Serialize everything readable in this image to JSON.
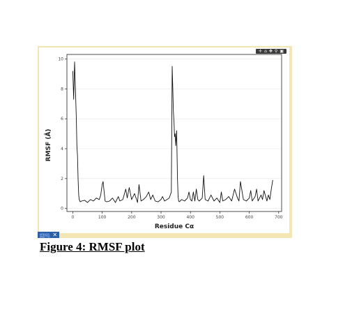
{
  "caption": "Figure 4: RMSF plot",
  "toolbar": {
    "icons": [
      "move-arrows-icon",
      "home-icon",
      "pan-icon",
      "zoom-icon",
      "save-icon"
    ]
  },
  "tag": {
    "label": "elegs",
    "close": "✕"
  },
  "colors": {
    "frame": "#f3e6b4",
    "line": "#111111",
    "grid": "#e6e6e6",
    "tag_bg": "#2b5fa8",
    "toolbar_bg": "#3a3a3a"
  },
  "chart_data": {
    "type": "line",
    "title": "",
    "xlabel": "Residue Cα",
    "ylabel": "RMSF (Å)",
    "xlim": [
      -20,
      710
    ],
    "ylim": [
      -0.2,
      10.3
    ],
    "xticks": [
      0,
      100,
      200,
      300,
      400,
      500,
      600,
      700
    ],
    "yticks": [
      0,
      2,
      4,
      6,
      8,
      10
    ],
    "grid": true,
    "series": [
      {
        "x": [
          0,
          3,
          6,
          9,
          12,
          14,
          16,
          18,
          20,
          22,
          25,
          30,
          40,
          50,
          60,
          70,
          80,
          90,
          95,
          100,
          103,
          106,
          110,
          115,
          125,
          135,
          145,
          155,
          160,
          170,
          180,
          185,
          192,
          200,
          210,
          220,
          225,
          232,
          240,
          250,
          258,
          265,
          272,
          280,
          290,
          300,
          305,
          312,
          320,
          328,
          335,
          338,
          340,
          342,
          344,
          346,
          348,
          350,
          353,
          356,
          358,
          360,
          362,
          365,
          370,
          380,
          390,
          395,
          400,
          405,
          410,
          415,
          420,
          425,
          430,
          440,
          445,
          450,
          460,
          470,
          480,
          490,
          500,
          505,
          510,
          520,
          530,
          540,
          550,
          560,
          565,
          570,
          580,
          590,
          600,
          605,
          610,
          620,
          625,
          630,
          640,
          645,
          650,
          660,
          665,
          670,
          675,
          680
        ],
        "y": [
          9.2,
          7.3,
          9.8,
          8.0,
          6.0,
          4.2,
          3.5,
          2.0,
          0.9,
          0.6,
          0.45,
          0.5,
          0.55,
          0.4,
          0.6,
          0.5,
          0.7,
          0.6,
          0.9,
          1.6,
          1.8,
          1.2,
          0.5,
          0.45,
          0.5,
          0.7,
          0.4,
          0.8,
          0.5,
          0.6,
          1.3,
          0.7,
          1.4,
          0.6,
          1.0,
          0.4,
          1.6,
          0.5,
          0.6,
          0.8,
          1.1,
          0.6,
          0.9,
          0.5,
          0.45,
          0.6,
          0.8,
          0.5,
          0.6,
          0.7,
          1.1,
          9.5,
          8.0,
          6.5,
          5.8,
          4.8,
          5.0,
          4.2,
          5.2,
          2.0,
          0.8,
          0.5,
          0.45,
          0.5,
          0.6,
          0.5,
          0.7,
          1.1,
          0.6,
          0.5,
          1.1,
          0.5,
          1.3,
          0.6,
          0.5,
          0.7,
          2.2,
          0.6,
          0.5,
          0.9,
          0.5,
          0.7,
          0.4,
          1.1,
          0.5,
          0.6,
          0.8,
          0.5,
          1.3,
          0.7,
          0.5,
          1.8,
          0.6,
          0.5,
          0.7,
          1.2,
          0.5,
          0.8,
          1.3,
          0.5,
          0.9,
          0.6,
          1.2,
          0.5,
          0.9,
          0.6,
          1.3,
          1.9
        ]
      }
    ]
  }
}
